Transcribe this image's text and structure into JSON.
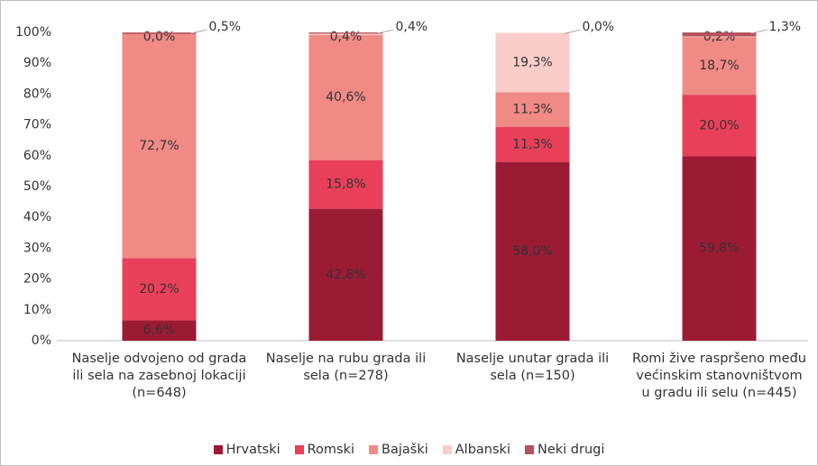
{
  "chart_data": {
    "type": "stacked_bar",
    "categories": [
      "Naselje odvojeno od grada ili sela na zasebnoj lokaciji (n=648)",
      "Naselje na rubu grada ili sela (n=278)",
      "Naselje unutar grada ili sela (n=150)",
      "Romi žive raspršeno među većinskim stanovništvom u gradu ili selu (n=445)"
    ],
    "series": [
      {
        "name": "Hrvatski",
        "color": "#9b1b35",
        "values": [
          6.6,
          42.8,
          58.0,
          59.8
        ],
        "value_labels": [
          "6,6%",
          "42,8%",
          "58,0%",
          "59,8%"
        ]
      },
      {
        "name": "Romski",
        "color": "#e8405a",
        "values": [
          20.2,
          15.8,
          11.3,
          20.0
        ],
        "value_labels": [
          "20,2%",
          "15,8%",
          "11,3%",
          "20,0%"
        ]
      },
      {
        "name": "Bajaški",
        "color": "#f08a85",
        "values": [
          72.7,
          40.6,
          11.3,
          18.7
        ],
        "value_labels": [
          "72,7%",
          "40,6%",
          "11,3%",
          "18,7%"
        ]
      },
      {
        "name": "Albanski",
        "color": "#f9cdc9",
        "values": [
          0.0,
          0.4,
          19.3,
          0.2
        ],
        "value_labels": [
          "0,0%",
          "0,4%",
          "19,3%",
          "0,2%"
        ]
      },
      {
        "name": "Neki drugi",
        "color": "#b5525d",
        "values": [
          0.5,
          0.4,
          0.0,
          1.3
        ],
        "value_labels": [
          "0,5%",
          "0,4%",
          "0,0%",
          "1,3%"
        ]
      }
    ],
    "ylim": [
      0,
      100
    ],
    "yticks": [
      {
        "value": 0,
        "label": "0%"
      },
      {
        "value": 10,
        "label": "10%"
      },
      {
        "value": 20,
        "label": "20%"
      },
      {
        "value": 30,
        "label": "30%"
      },
      {
        "value": 40,
        "label": "40%"
      },
      {
        "value": 50,
        "label": "50%"
      },
      {
        "value": 60,
        "label": "60%"
      },
      {
        "value": 70,
        "label": "70%"
      },
      {
        "value": 80,
        "label": "80%"
      },
      {
        "value": 90,
        "label": "90%"
      },
      {
        "value": 100,
        "label": "100%"
      }
    ],
    "legend": "bottom"
  }
}
